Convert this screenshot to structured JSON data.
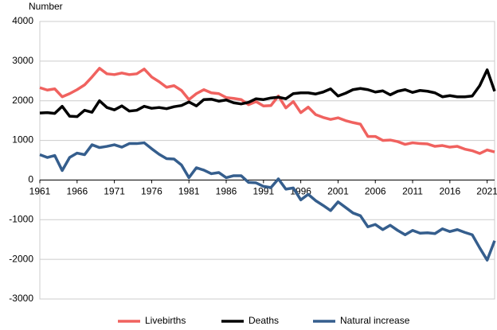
{
  "chart_data": {
    "type": "line",
    "y_label": "Number",
    "x": [
      1961,
      1962,
      1963,
      1964,
      1965,
      1966,
      1967,
      1968,
      1969,
      1970,
      1971,
      1972,
      1973,
      1974,
      1975,
      1976,
      1977,
      1978,
      1979,
      1980,
      1981,
      1982,
      1983,
      1984,
      1985,
      1986,
      1987,
      1988,
      1989,
      1990,
      1991,
      1992,
      1993,
      1994,
      1995,
      1996,
      1997,
      1998,
      1999,
      2000,
      2001,
      2002,
      2003,
      2004,
      2005,
      2006,
      2007,
      2008,
      2009,
      2010,
      2011,
      2012,
      2013,
      2014,
      2015,
      2016,
      2017,
      2018,
      2019,
      2020,
      2021,
      2022
    ],
    "xlim": [
      1961,
      2022
    ],
    "xticks": [
      1961,
      1966,
      1971,
      1976,
      1981,
      1986,
      1991,
      1996,
      2001,
      2006,
      2011,
      2016,
      2021
    ],
    "ylim": [
      -3000,
      4000
    ],
    "yticks": [
      -3000,
      -2000,
      -1000,
      0,
      1000,
      2000,
      3000,
      4000
    ],
    "grid": true,
    "legend": "bottom",
    "series": [
      {
        "name": "Livebirths",
        "color": "#f0625f",
        "values": [
          2330,
          2270,
          2300,
          2100,
          2180,
          2280,
          2400,
          2600,
          2820,
          2680,
          2660,
          2700,
          2660,
          2680,
          2800,
          2600,
          2480,
          2340,
          2380,
          2260,
          2030,
          2180,
          2280,
          2200,
          2180,
          2080,
          2060,
          2030,
          1900,
          1980,
          1870,
          1880,
          2120,
          1820,
          1980,
          1700,
          1840,
          1650,
          1580,
          1530,
          1570,
          1500,
          1450,
          1410,
          1100,
          1100,
          1000,
          1010,
          970,
          900,
          940,
          920,
          910,
          850,
          870,
          830,
          850,
          780,
          740,
          670,
          760,
          710
        ]
      },
      {
        "name": "Deaths",
        "color": "#000000",
        "values": [
          1690,
          1700,
          1680,
          1860,
          1610,
          1600,
          1760,
          1710,
          2000,
          1830,
          1770,
          1870,
          1740,
          1760,
          1860,
          1810,
          1830,
          1800,
          1850,
          1880,
          1970,
          1870,
          2030,
          2040,
          1990,
          2020,
          1950,
          1920,
          1960,
          2050,
          2030,
          2070,
          2090,
          2050,
          2180,
          2200,
          2200,
          2170,
          2220,
          2300,
          2120,
          2190,
          2280,
          2310,
          2280,
          2220,
          2250,
          2150,
          2240,
          2280,
          2210,
          2260,
          2240,
          2200,
          2100,
          2130,
          2100,
          2100,
          2120,
          2380,
          2780,
          2240
        ]
      },
      {
        "name": "Natural increase",
        "color": "#355e8d",
        "values": [
          640,
          570,
          620,
          240,
          570,
          680,
          640,
          890,
          820,
          850,
          890,
          830,
          920,
          920,
          940,
          790,
          650,
          540,
          530,
          380,
          60,
          310,
          250,
          160,
          190,
          60,
          110,
          110,
          -60,
          -70,
          -160,
          -190,
          30,
          -230,
          -200,
          -500,
          -360,
          -520,
          -640,
          -770,
          -550,
          -690,
          -830,
          -900,
          -1180,
          -1120,
          -1250,
          -1140,
          -1270,
          -1380,
          -1270,
          -1340,
          -1330,
          -1350,
          -1230,
          -1300,
          -1250,
          -1320,
          -1380,
          -1710,
          -2020,
          -1530
        ]
      }
    ]
  }
}
